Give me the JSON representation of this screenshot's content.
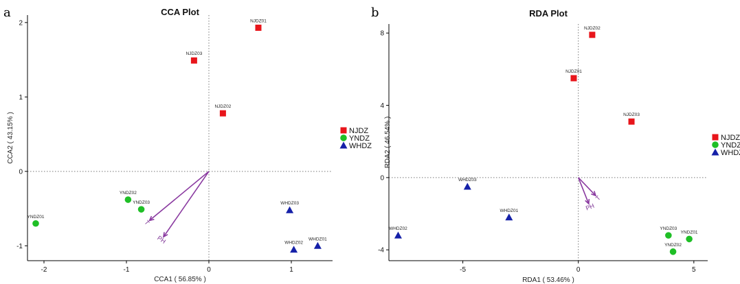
{
  "colors": {
    "NJDZ": "#e8151b",
    "YNDZ": "#1fbf26",
    "WHDZ": "#1520a8",
    "arrow": "#8a3aa0",
    "zero_line": "#777777"
  },
  "legend": [
    {
      "name": "NJDZ",
      "shape": "square"
    },
    {
      "name": "YNDZ",
      "shape": "circle"
    },
    {
      "name": "WHDZ",
      "shape": "triangle"
    }
  ],
  "chart_data": [
    {
      "type": "scatter",
      "panel_label": "a",
      "title": "CCA Plot",
      "xlabel": "CCA1 ( 56.85% )",
      "ylabel": "CCA2 ( 43.15% )",
      "xlim": [
        -2.2,
        1.5
      ],
      "ylim": [
        -1.2,
        2.1
      ],
      "xticks": [
        -2,
        -1,
        0,
        1
      ],
      "yticks": [
        -1,
        0,
        1,
        2
      ],
      "points": [
        {
          "group": "NJDZ",
          "label": "NJDZ01",
          "x": 0.6,
          "y": 1.93
        },
        {
          "group": "NJDZ",
          "label": "NJDZ03",
          "x": -0.18,
          "y": 1.49
        },
        {
          "group": "NJDZ",
          "label": "NJDZ02",
          "x": 0.17,
          "y": 0.78
        },
        {
          "group": "YNDZ",
          "label": "YNDZ02",
          "x": -0.98,
          "y": -0.38
        },
        {
          "group": "YNDZ",
          "label": "YNDZ03",
          "x": -0.82,
          "y": -0.51
        },
        {
          "group": "YNDZ",
          "label": "YNDZ01",
          "x": -2.1,
          "y": -0.7
        },
        {
          "group": "WHDZ",
          "label": "WHDZ03",
          "x": 0.98,
          "y": -0.52
        },
        {
          "group": "WHDZ",
          "label": "WHDZ02",
          "x": 1.03,
          "y": -1.05
        },
        {
          "group": "WHDZ",
          "label": "WHDZ01",
          "x": 1.32,
          "y": -1.0
        }
      ],
      "arrows": [
        {
          "label": "T",
          "x": -0.72,
          "y": -0.66
        },
        {
          "label": "PH",
          "x": -0.55,
          "y": -0.88
        }
      ]
    },
    {
      "type": "scatter",
      "panel_label": "b",
      "title": "RDA Plot",
      "xlabel": "RDA1 ( 53.46% )",
      "ylabel": "RDA2 ( 46.54% )",
      "xlim": [
        -8.2,
        5.6
      ],
      "ylim": [
        -4.6,
        8.5
      ],
      "xticks": [
        -5,
        0,
        5
      ],
      "yticks": [
        -4,
        0,
        4,
        8
      ],
      "points": [
        {
          "group": "NJDZ",
          "label": "NJDZ02",
          "x": 0.6,
          "y": 7.9
        },
        {
          "group": "NJDZ",
          "label": "NJDZ01",
          "x": -0.2,
          "y": 5.5
        },
        {
          "group": "NJDZ",
          "label": "NJDZ03",
          "x": 2.3,
          "y": 3.1
        },
        {
          "group": "YNDZ",
          "label": "YNDZ03",
          "x": 3.9,
          "y": -3.2
        },
        {
          "group": "YNDZ",
          "label": "YNDZ01",
          "x": 4.8,
          "y": -3.4
        },
        {
          "group": "YNDZ",
          "label": "YNDZ02",
          "x": 4.1,
          "y": -4.1
        },
        {
          "group": "WHDZ",
          "label": "WHDZ03",
          "x": -4.8,
          "y": -0.5
        },
        {
          "group": "WHDZ",
          "label": "WHDZ01",
          "x": -3.0,
          "y": -2.2
        },
        {
          "group": "WHDZ",
          "label": "WHDZ02",
          "x": -7.8,
          "y": -3.2
        }
      ],
      "arrows": [
        {
          "label": "T",
          "x": 0.75,
          "y": -1.0
        },
        {
          "label": "PH",
          "x": 0.45,
          "y": -1.45
        }
      ]
    }
  ]
}
